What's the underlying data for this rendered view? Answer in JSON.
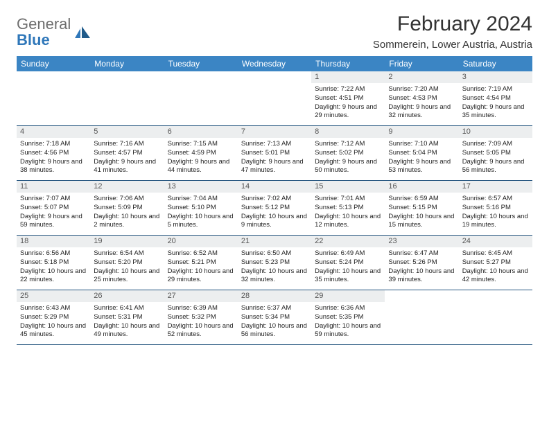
{
  "logo": {
    "text1": "General",
    "text2": "Blue"
  },
  "title": "February 2024",
  "location": "Sommerein, Lower Austria, Austria",
  "colors": {
    "header_bg": "#3b85c4",
    "header_text": "#ffffff",
    "daynum_bg": "#eceeef",
    "row_border": "#24557f",
    "logo_gray": "#6e6e6e",
    "logo_blue": "#2f77b9"
  },
  "columns": [
    "Sunday",
    "Monday",
    "Tuesday",
    "Wednesday",
    "Thursday",
    "Friday",
    "Saturday"
  ],
  "weeks": [
    [
      null,
      null,
      null,
      null,
      {
        "n": "1",
        "sunrise": "7:22 AM",
        "sunset": "4:51 PM",
        "daylight": "9 hours and 29 minutes."
      },
      {
        "n": "2",
        "sunrise": "7:20 AM",
        "sunset": "4:53 PM",
        "daylight": "9 hours and 32 minutes."
      },
      {
        "n": "3",
        "sunrise": "7:19 AM",
        "sunset": "4:54 PM",
        "daylight": "9 hours and 35 minutes."
      }
    ],
    [
      {
        "n": "4",
        "sunrise": "7:18 AM",
        "sunset": "4:56 PM",
        "daylight": "9 hours and 38 minutes."
      },
      {
        "n": "5",
        "sunrise": "7:16 AM",
        "sunset": "4:57 PM",
        "daylight": "9 hours and 41 minutes."
      },
      {
        "n": "6",
        "sunrise": "7:15 AM",
        "sunset": "4:59 PM",
        "daylight": "9 hours and 44 minutes."
      },
      {
        "n": "7",
        "sunrise": "7:13 AM",
        "sunset": "5:01 PM",
        "daylight": "9 hours and 47 minutes."
      },
      {
        "n": "8",
        "sunrise": "7:12 AM",
        "sunset": "5:02 PM",
        "daylight": "9 hours and 50 minutes."
      },
      {
        "n": "9",
        "sunrise": "7:10 AM",
        "sunset": "5:04 PM",
        "daylight": "9 hours and 53 minutes."
      },
      {
        "n": "10",
        "sunrise": "7:09 AM",
        "sunset": "5:05 PM",
        "daylight": "9 hours and 56 minutes."
      }
    ],
    [
      {
        "n": "11",
        "sunrise": "7:07 AM",
        "sunset": "5:07 PM",
        "daylight": "9 hours and 59 minutes."
      },
      {
        "n": "12",
        "sunrise": "7:06 AM",
        "sunset": "5:09 PM",
        "daylight": "10 hours and 2 minutes."
      },
      {
        "n": "13",
        "sunrise": "7:04 AM",
        "sunset": "5:10 PM",
        "daylight": "10 hours and 5 minutes."
      },
      {
        "n": "14",
        "sunrise": "7:02 AM",
        "sunset": "5:12 PM",
        "daylight": "10 hours and 9 minutes."
      },
      {
        "n": "15",
        "sunrise": "7:01 AM",
        "sunset": "5:13 PM",
        "daylight": "10 hours and 12 minutes."
      },
      {
        "n": "16",
        "sunrise": "6:59 AM",
        "sunset": "5:15 PM",
        "daylight": "10 hours and 15 minutes."
      },
      {
        "n": "17",
        "sunrise": "6:57 AM",
        "sunset": "5:16 PM",
        "daylight": "10 hours and 19 minutes."
      }
    ],
    [
      {
        "n": "18",
        "sunrise": "6:56 AM",
        "sunset": "5:18 PM",
        "daylight": "10 hours and 22 minutes."
      },
      {
        "n": "19",
        "sunrise": "6:54 AM",
        "sunset": "5:20 PM",
        "daylight": "10 hours and 25 minutes."
      },
      {
        "n": "20",
        "sunrise": "6:52 AM",
        "sunset": "5:21 PM",
        "daylight": "10 hours and 29 minutes."
      },
      {
        "n": "21",
        "sunrise": "6:50 AM",
        "sunset": "5:23 PM",
        "daylight": "10 hours and 32 minutes."
      },
      {
        "n": "22",
        "sunrise": "6:49 AM",
        "sunset": "5:24 PM",
        "daylight": "10 hours and 35 minutes."
      },
      {
        "n": "23",
        "sunrise": "6:47 AM",
        "sunset": "5:26 PM",
        "daylight": "10 hours and 39 minutes."
      },
      {
        "n": "24",
        "sunrise": "6:45 AM",
        "sunset": "5:27 PM",
        "daylight": "10 hours and 42 minutes."
      }
    ],
    [
      {
        "n": "25",
        "sunrise": "6:43 AM",
        "sunset": "5:29 PM",
        "daylight": "10 hours and 45 minutes."
      },
      {
        "n": "26",
        "sunrise": "6:41 AM",
        "sunset": "5:31 PM",
        "daylight": "10 hours and 49 minutes."
      },
      {
        "n": "27",
        "sunrise": "6:39 AM",
        "sunset": "5:32 PM",
        "daylight": "10 hours and 52 minutes."
      },
      {
        "n": "28",
        "sunrise": "6:37 AM",
        "sunset": "5:34 PM",
        "daylight": "10 hours and 56 minutes."
      },
      {
        "n": "29",
        "sunrise": "6:36 AM",
        "sunset": "5:35 PM",
        "daylight": "10 hours and 59 minutes."
      },
      null,
      null
    ]
  ],
  "labels": {
    "sunrise": "Sunrise:",
    "sunset": "Sunset:",
    "daylight": "Daylight:"
  }
}
